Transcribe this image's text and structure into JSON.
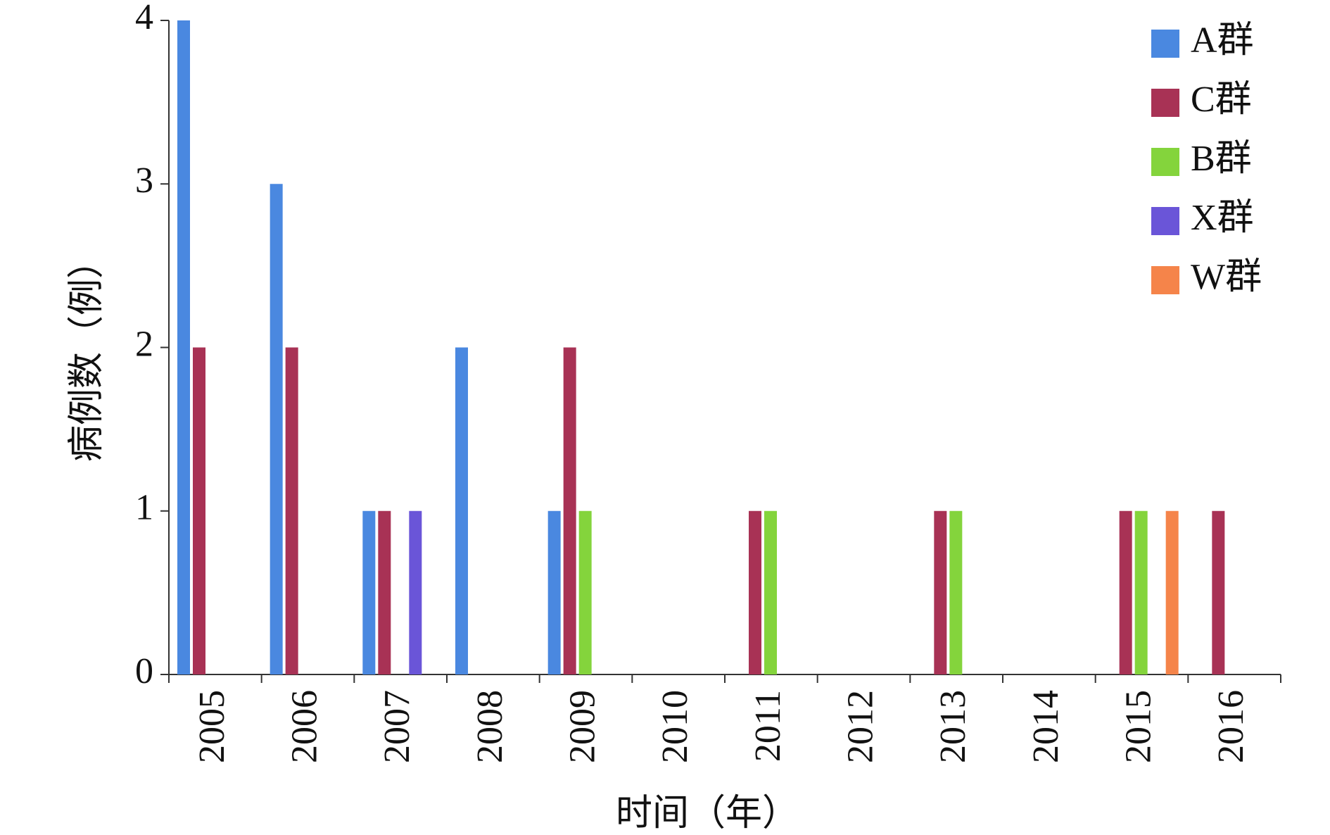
{
  "chart_data": {
    "type": "bar",
    "x_label": "时间（年）",
    "y_label": "病例数（例）",
    "categories": [
      "2005",
      "2006",
      "2007",
      "2008",
      "2009",
      "2010",
      "2011",
      "2012",
      "2013",
      "2014",
      "2015",
      "2016"
    ],
    "series": [
      {
        "name": "A群",
        "color": "#4a88e0",
        "values": [
          4,
          3,
          1,
          2,
          1,
          0,
          0,
          0,
          0,
          0,
          0,
          0
        ]
      },
      {
        "name": "C群",
        "color": "#a83255",
        "values": [
          2,
          2,
          1,
          0,
          2,
          0,
          1,
          0,
          1,
          0,
          1,
          1
        ]
      },
      {
        "name": "B群",
        "color": "#84d43c",
        "values": [
          0,
          0,
          0,
          0,
          1,
          0,
          1,
          0,
          1,
          0,
          1,
          0
        ]
      },
      {
        "name": "X群",
        "color": "#6a55d8",
        "values": [
          0,
          0,
          1,
          0,
          0,
          0,
          0,
          0,
          0,
          0,
          0,
          0
        ]
      },
      {
        "name": "W群",
        "color": "#f5844a",
        "values": [
          0,
          0,
          0,
          0,
          0,
          0,
          0,
          0,
          0,
          0,
          1,
          0
        ]
      }
    ],
    "ylim": [
      0,
      4
    ],
    "yticks": [
      0,
      1,
      2,
      3,
      4
    ],
    "legend": "top-right"
  }
}
